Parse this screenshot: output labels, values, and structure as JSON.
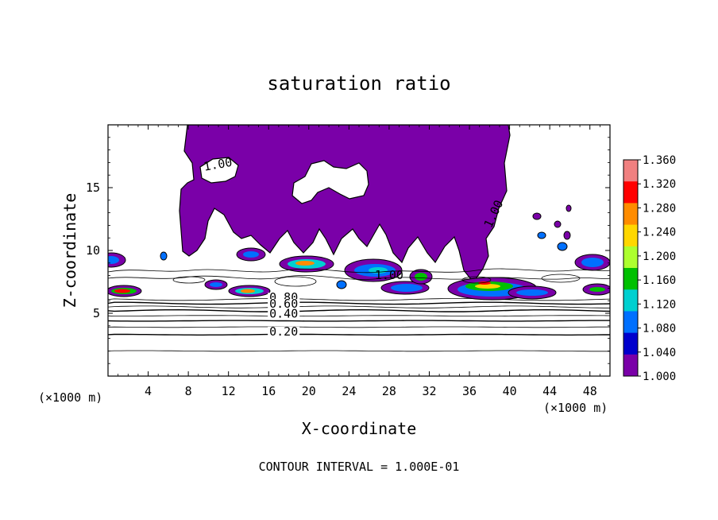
{
  "chart_data": {
    "type": "heatmap",
    "title": "saturation ratio",
    "xlabel": "X-coordinate",
    "ylabel": "Z-coordinate",
    "x_unit_left": "(×1000 m)",
    "x_unit_right": "(×1000 m)",
    "xlim": [
      0,
      50
    ],
    "ylim": [
      0,
      20
    ],
    "x_ticks": [
      4,
      8,
      12,
      16,
      20,
      24,
      28,
      32,
      36,
      40,
      44,
      48
    ],
    "y_ticks": [
      5,
      10,
      15
    ],
    "footer": "CONTOUR INTERVAL = 1.000E-01",
    "colorbar": {
      "min": 1.0,
      "max": 1.36,
      "labels": [
        "1.360",
        "1.320",
        "1.280",
        "1.240",
        "1.200",
        "1.160",
        "1.120",
        "1.080",
        "1.040",
        "1.000"
      ],
      "colors": [
        "#f08080",
        "#ff0000",
        "#ff8c00",
        "#ffd700",
        "#adff2f",
        "#00c000",
        "#00d0d0",
        "#0070ff",
        "#0000cd",
        "#7a00a8"
      ]
    },
    "contour_labels": [
      {
        "text": "1.00",
        "x": 11.0,
        "z": 16.6
      },
      {
        "text": "1.00",
        "x": 28.0,
        "z": 7.8
      },
      {
        "text": "1.00",
        "x": 38.7,
        "z": 12.8
      },
      {
        "text": "0.80",
        "x": 17.5,
        "z": 6.0
      },
      {
        "text": "0.60",
        "x": 17.5,
        "z": 5.5
      },
      {
        "text": "0.40",
        "x": 17.5,
        "z": 4.7
      },
      {
        "text": "0.20",
        "x": 17.5,
        "z": 3.3
      }
    ],
    "stratified_contours_z": [
      2.0,
      3.3,
      3.9,
      4.4,
      4.8,
      5.2,
      5.5,
      5.8,
      6.1
    ]
  }
}
